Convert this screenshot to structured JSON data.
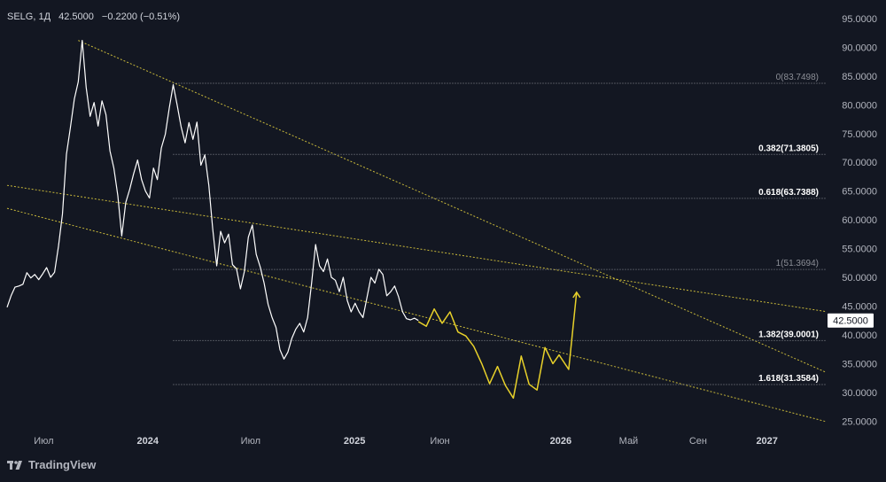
{
  "header": {
    "symbol": "SELG, 1Д",
    "last": "42.5000",
    "change": "−0.2200 (−0.51%)"
  },
  "brand": {
    "name": "TradingView"
  },
  "colors": {
    "background": "#131722",
    "price_line": "#ffffff",
    "trend_line": "#c9b93a",
    "projection": "#e8d12a",
    "fib_line": "#8c8f97",
    "axis_text": "#b2b5be",
    "label_bg": "#ffffff"
  },
  "chart_data": {
    "type": "line",
    "y_axis": {
      "range": [
        23.5,
        97
      ],
      "ticks": [
        "25.0000",
        "30.0000",
        "35.0000",
        "40.0000",
        "45.0000",
        "50.0000",
        "55.0000",
        "60.0000",
        "65.0000",
        "70.0000",
        "75.0000",
        "80.0000",
        "85.0000",
        "90.0000",
        "95.0000"
      ],
      "position": "right"
    },
    "x_axis": {
      "range": [
        "2023-04-27",
        "2027-04-15"
      ],
      "ticks": [
        {
          "label": "Июл",
          "date": "2023-07-01",
          "bold": false
        },
        {
          "label": "2024",
          "date": "2024-01-01",
          "bold": true
        },
        {
          "label": "Июл",
          "date": "2024-07-01",
          "bold": false
        },
        {
          "label": "2025",
          "date": "2025-01-01",
          "bold": true
        },
        {
          "label": "Июн",
          "date": "2025-06-01",
          "bold": false
        },
        {
          "label": "2026",
          "date": "2026-01-01",
          "bold": true
        },
        {
          "label": "Май",
          "date": "2026-05-01",
          "bold": false
        },
        {
          "label": "Сен",
          "date": "2026-09-01",
          "bold": false
        },
        {
          "label": "2027",
          "date": "2027-01-01",
          "bold": true
        }
      ]
    },
    "grid": false,
    "price_series": [
      [
        "2023-04-27",
        44.8
      ],
      [
        "2023-05-04",
        46.8
      ],
      [
        "2023-05-11",
        48.3
      ],
      [
        "2023-05-18",
        48.5
      ],
      [
        "2023-05-25",
        48.8
      ],
      [
        "2023-06-01",
        50.8
      ],
      [
        "2023-06-08",
        49.9
      ],
      [
        "2023-06-15",
        50.5
      ],
      [
        "2023-06-22",
        49.6
      ],
      [
        "2023-06-29",
        50.6
      ],
      [
        "2023-07-06",
        51.7
      ],
      [
        "2023-07-13",
        50.0
      ],
      [
        "2023-07-20",
        50.9
      ],
      [
        "2023-07-27",
        55.4
      ],
      [
        "2023-08-03",
        61.0
      ],
      [
        "2023-08-10",
        71.4
      ],
      [
        "2023-08-17",
        76.0
      ],
      [
        "2023-08-24",
        81.0
      ],
      [
        "2023-08-31",
        84.0
      ],
      [
        "2023-09-07",
        91.2
      ],
      [
        "2023-09-14",
        83.0
      ],
      [
        "2023-09-21",
        78.0
      ],
      [
        "2023-09-28",
        80.4
      ],
      [
        "2023-10-05",
        76.3
      ],
      [
        "2023-10-12",
        80.7
      ],
      [
        "2023-10-19",
        78.3
      ],
      [
        "2023-10-26",
        72.0
      ],
      [
        "2023-11-02",
        69.0
      ],
      [
        "2023-11-09",
        64.2
      ],
      [
        "2023-11-16",
        57.2
      ],
      [
        "2023-11-23",
        63.0
      ],
      [
        "2023-11-30",
        65.3
      ],
      [
        "2023-12-07",
        68.0
      ],
      [
        "2023-12-14",
        70.4
      ],
      [
        "2023-12-21",
        67.0
      ],
      [
        "2023-12-28",
        65.0
      ],
      [
        "2024-01-04",
        63.8
      ],
      [
        "2024-01-11",
        69.0
      ],
      [
        "2024-01-18",
        67.0
      ],
      [
        "2024-01-25",
        72.5
      ],
      [
        "2024-02-01",
        74.9
      ],
      [
        "2024-02-08",
        79.4
      ],
      [
        "2024-02-15",
        83.5
      ],
      [
        "2024-02-22",
        80.0
      ],
      [
        "2024-02-29",
        76.2
      ],
      [
        "2024-03-07",
        73.4
      ],
      [
        "2024-03-14",
        76.9
      ],
      [
        "2024-03-21",
        74.0
      ],
      [
        "2024-03-28",
        77.0
      ],
      [
        "2024-04-04",
        69.5
      ],
      [
        "2024-04-11",
        71.3
      ],
      [
        "2024-04-18",
        66.0
      ],
      [
        "2024-04-25",
        58.4
      ],
      [
        "2024-05-02",
        52.0
      ],
      [
        "2024-05-09",
        58.0
      ],
      [
        "2024-05-16",
        56.0
      ],
      [
        "2024-05-23",
        57.5
      ],
      [
        "2024-05-30",
        52.2
      ],
      [
        "2024-06-06",
        51.5
      ],
      [
        "2024-06-13",
        48.0
      ],
      [
        "2024-06-20",
        51.0
      ],
      [
        "2024-06-27",
        57.0
      ],
      [
        "2024-07-04",
        59.1
      ],
      [
        "2024-07-11",
        54.0
      ],
      [
        "2024-07-18",
        51.8
      ],
      [
        "2024-07-25",
        49.0
      ],
      [
        "2024-08-01",
        45.3
      ],
      [
        "2024-08-08",
        43.0
      ],
      [
        "2024-08-15",
        41.3
      ],
      [
        "2024-08-22",
        37.4
      ],
      [
        "2024-08-29",
        35.8
      ],
      [
        "2024-09-05",
        37.0
      ],
      [
        "2024-09-12",
        39.4
      ],
      [
        "2024-09-19",
        41.0
      ],
      [
        "2024-09-26",
        42.0
      ],
      [
        "2024-10-03",
        40.5
      ],
      [
        "2024-10-10",
        43.0
      ],
      [
        "2024-10-17",
        49.0
      ],
      [
        "2024-10-24",
        55.7
      ],
      [
        "2024-10-31",
        52.0
      ],
      [
        "2024-11-07",
        51.0
      ],
      [
        "2024-11-14",
        53.2
      ],
      [
        "2024-11-21",
        50.0
      ],
      [
        "2024-11-28",
        49.5
      ],
      [
        "2024-12-05",
        47.5
      ],
      [
        "2024-12-12",
        50.0
      ],
      [
        "2024-12-19",
        46.0
      ],
      [
        "2024-12-26",
        44.0
      ],
      [
        "2025-01-02",
        45.5
      ],
      [
        "2025-01-09",
        44.0
      ],
      [
        "2025-01-16",
        43.0
      ],
      [
        "2025-01-23",
        46.5
      ],
      [
        "2025-01-30",
        50.0
      ],
      [
        "2025-02-06",
        49.0
      ],
      [
        "2025-02-13",
        51.4
      ],
      [
        "2025-02-20",
        50.5
      ],
      [
        "2025-02-27",
        46.8
      ],
      [
        "2025-03-06",
        47.5
      ],
      [
        "2025-03-13",
        48.5
      ],
      [
        "2025-03-20",
        46.6
      ],
      [
        "2025-03-27",
        44.0
      ],
      [
        "2025-04-03",
        42.8
      ],
      [
        "2025-04-10",
        42.6
      ],
      [
        "2025-04-17",
        42.9
      ],
      [
        "2025-04-24",
        42.5
      ]
    ],
    "projection_series": [
      [
        "2025-04-24",
        42.3
      ],
      [
        "2025-05-08",
        41.5
      ],
      [
        "2025-05-22",
        44.5
      ],
      [
        "2025-06-05",
        42.0
      ],
      [
        "2025-06-19",
        44.0
      ],
      [
        "2025-07-03",
        40.5
      ],
      [
        "2025-07-17",
        39.8
      ],
      [
        "2025-07-31",
        38.0
      ],
      [
        "2025-08-14",
        35.0
      ],
      [
        "2025-08-28",
        31.5
      ],
      [
        "2025-09-11",
        34.5
      ],
      [
        "2025-09-25",
        31.2
      ],
      [
        "2025-10-09",
        29.0
      ],
      [
        "2025-10-23",
        36.3
      ],
      [
        "2025-11-06",
        31.4
      ],
      [
        "2025-11-20",
        30.4
      ],
      [
        "2025-12-04",
        37.8
      ],
      [
        "2025-12-18",
        35.0
      ],
      [
        "2025-12-29",
        36.5
      ],
      [
        "2026-01-15",
        34.0
      ],
      [
        "2026-01-29",
        47.4
      ]
    ],
    "trend_lines": [
      {
        "p1": [
          "2023-08-31",
          91.2
        ],
        "p2": [
          "2026-05-29",
          47.5
        ]
      },
      {
        "p1": [
          "2023-04-27",
          66.0
        ],
        "p2": [
          "2026-10-29",
          46.6
        ]
      },
      {
        "p1": [
          "2023-04-27",
          62.0
        ],
        "p2": [
          "2025-06-01",
          42.4
        ]
      }
    ],
    "fib_levels": [
      {
        "label": "0(83.7498)",
        "value": 83.7498,
        "bold": false,
        "from": "2024-02-15"
      },
      {
        "label": "0.382(71.3805)",
        "value": 71.3805,
        "bold": true,
        "from": "2024-02-15"
      },
      {
        "label": "0.618(63.7388)",
        "value": 63.7388,
        "bold": true,
        "from": "2024-02-15"
      },
      {
        "label": "1(51.3694)",
        "value": 51.3694,
        "bold": false,
        "from": "2024-02-15"
      },
      {
        "label": "1.382(39.0001)",
        "value": 39.0001,
        "bold": true,
        "from": "2024-02-15"
      },
      {
        "label": "1.618(31.3584)",
        "value": 31.3584,
        "bold": true,
        "from": "2024-02-15"
      }
    ],
    "last_price": {
      "value": 42.5,
      "label": "42.5000"
    }
  }
}
